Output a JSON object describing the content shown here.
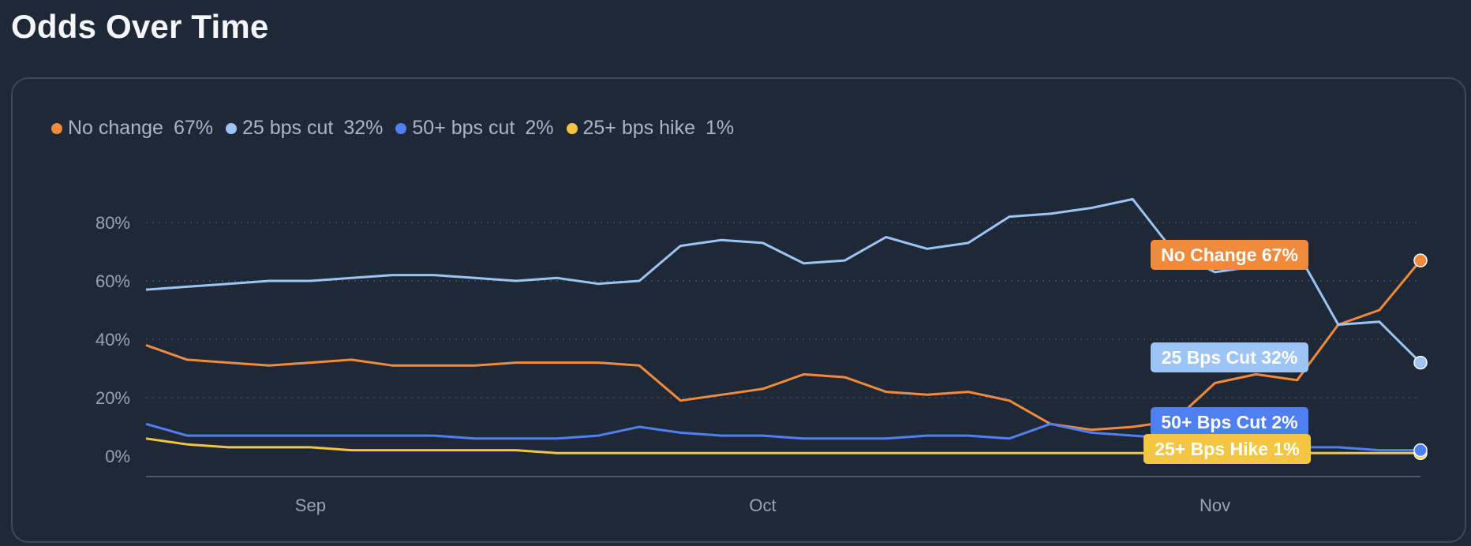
{
  "page": {
    "title": "Odds Over Time"
  },
  "legend": [
    {
      "label": "No change",
      "value": "67%",
      "color": "#f08a3c"
    },
    {
      "label": "25 bps cut",
      "value": "32%",
      "color": "#9cc4f5"
    },
    {
      "label": "50+ bps cut",
      "value": "2%",
      "color": "#4f7ff0"
    },
    {
      "label": "25+ bps hike",
      "value": "1%",
      "color": "#f4c542"
    }
  ],
  "chart_data": {
    "type": "line",
    "title": "Odds Over Time",
    "xlabel": "",
    "ylabel": "",
    "x_ticks": [
      "Sep",
      "Oct",
      "Nov"
    ],
    "y_ticks": [
      "0%",
      "20%",
      "40%",
      "60%",
      "80%"
    ],
    "ylim": [
      0,
      90
    ],
    "grid": true,
    "legend_placement": "top-left",
    "x": [
      "Aug 21",
      "Aug 24",
      "Aug 27",
      "Aug 30",
      "Sep 1",
      "Sep 3",
      "Sep 6",
      "Sep 9",
      "Sep 12",
      "Sep 15",
      "Sep 18",
      "Sep 21",
      "Sep 24",
      "Sep 27",
      "Sep 30",
      "Oct 1",
      "Oct 4",
      "Oct 7",
      "Oct 10",
      "Oct 13",
      "Oct 16",
      "Oct 19",
      "Oct 22",
      "Oct 25",
      "Oct 28",
      "Oct 31",
      "Nov 1",
      "Nov 4",
      "Nov 7",
      "Nov 10",
      "Nov 13",
      "Nov 17"
    ],
    "series": [
      {
        "name": "No change",
        "color": "#f08a3c",
        "end_label": "No Change 67%",
        "values": [
          38,
          33,
          32,
          31,
          32,
          33,
          31,
          31,
          31,
          32,
          32,
          32,
          31,
          19,
          21,
          23,
          28,
          27,
          22,
          21,
          22,
          19,
          11,
          9,
          10,
          12,
          25,
          28,
          26,
          45,
          50,
          67
        ]
      },
      {
        "name": "25 bps cut",
        "color": "#9cc4f5",
        "end_label": "25 Bps Cut 32%",
        "values": [
          57,
          58,
          59,
          60,
          60,
          61,
          62,
          62,
          61,
          60,
          61,
          59,
          60,
          72,
          74,
          73,
          66,
          67,
          75,
          71,
          73,
          82,
          83,
          85,
          88,
          70,
          63,
          65,
          70,
          45,
          46,
          32
        ]
      },
      {
        "name": "50+ bps cut",
        "color": "#4f7ff0",
        "end_label": "50+ Bps Cut 2%",
        "values": [
          11,
          7,
          7,
          7,
          7,
          7,
          7,
          7,
          6,
          6,
          6,
          7,
          10,
          8,
          7,
          7,
          6,
          6,
          6,
          7,
          7,
          6,
          11,
          8,
          7,
          6,
          4,
          3,
          3,
          3,
          2,
          2
        ]
      },
      {
        "name": "25+ bps hike",
        "color": "#f4c542",
        "end_label": "25+ Bps Hike 1%",
        "values": [
          6,
          4,
          3,
          3,
          3,
          2,
          2,
          2,
          2,
          2,
          1,
          1,
          1,
          1,
          1,
          1,
          1,
          1,
          1,
          1,
          1,
          1,
          1,
          1,
          1,
          1,
          1,
          1,
          1,
          1,
          1,
          1
        ]
      }
    ]
  }
}
